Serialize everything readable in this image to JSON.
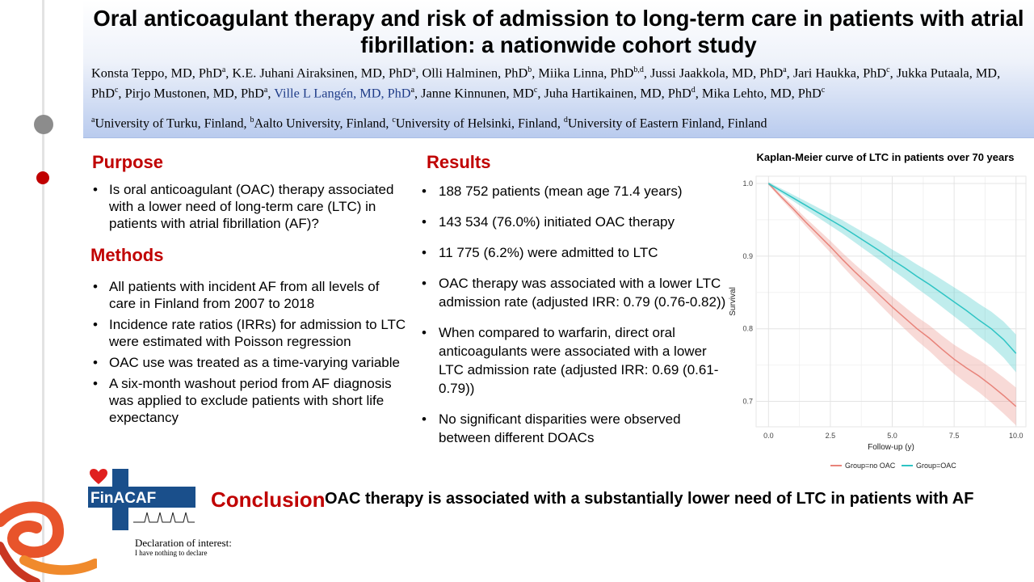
{
  "header": {
    "title": "Oral anticoagulant therapy and risk of admission to long-term care in patients with atrial fibrillation: a nationwide cohort study",
    "authors": [
      {
        "name": "Konsta Teppo, MD, PhD",
        "sup": "a",
        "sep": ", ",
        "blue": false
      },
      {
        "name": "K.E. Juhani Airaksinen, MD, PhD",
        "sup": "a",
        "sep": ", ",
        "blue": false
      },
      {
        "name": "Olli Halminen, PhD",
        "sup": "b",
        "sep": ", ",
        "blue": false
      },
      {
        "name": "Miika Linna, PhD",
        "sup": "b,d",
        "sep": ", ",
        "blue": false
      },
      {
        "name": "Jussi Jaakkola, MD, PhD",
        "sup": "a",
        "sep": ", ",
        "blue": false
      },
      {
        "name": "Jari Haukka, PhD",
        "sup": "c",
        "sep": ", ",
        "blue": false
      },
      {
        "name": "Jukka Putaala, MD, PhD",
        "sup": "c",
        "sep": ", ",
        "blue": false
      },
      {
        "name": "Pirjo Mustonen, MD, PhD",
        "sup": "a",
        "sep": ", ",
        "blue": false
      },
      {
        "name": "Ville L Langén, MD, PhD",
        "sup": "a",
        "sep": ", ",
        "blue": true
      },
      {
        "name": "Janne Kinnunen, MD",
        "sup": "c",
        "sep": ", ",
        "blue": false
      },
      {
        "name": "Juha Hartikainen, MD, PhD",
        "sup": "d",
        "sep": ", ",
        "blue": false
      },
      {
        "name": "Mika Lehto, MD, PhD",
        "sup": "c",
        "sep": "",
        "blue": false
      }
    ],
    "affiliations": [
      {
        "sup": "a",
        "text": "University of Turku, Finland, "
      },
      {
        "sup": "b",
        "text": "Aalto University, Finland, "
      },
      {
        "sup": "c",
        "text": "University of Helsinki, Finland, "
      },
      {
        "sup": "d",
        "text": "University of Eastern Finland, Finland"
      }
    ]
  },
  "purpose": {
    "heading": "Purpose",
    "items": [
      "Is oral anticoagulant (OAC) therapy associated with a lower need of long-term care (LTC) in patients with atrial fibrillation (AF)?"
    ]
  },
  "methods": {
    "heading": "Methods",
    "items": [
      "All patients with incident AF from all levels of care in Finland from 2007 to 2018",
      "Incidence rate ratios (IRRs) for admission to LTC were estimated with Poisson regression",
      "OAC use was treated as a time-varying variable",
      "A six-month washout period from AF diagnosis was applied to exclude patients with short life expectancy"
    ]
  },
  "results": {
    "heading": "Results",
    "items": [
      "188 752 patients (mean age 71.4 years)",
      "143 534 (76.0%) initiated OAC therapy",
      "11 775 (6.2%) were admitted to LTC",
      "OAC therapy was associated with a lower LTC admission rate (adjusted IRR: 0.79 (0.76-0.82))",
      "When compared to warfarin, direct oral anticoagulants were associated with a lower LTC admission rate (adjusted IRR: 0.69 (0.61-0.79))",
      "No significant disparities were observed between different DOACs"
    ]
  },
  "conclusion": {
    "heading": "Conclusion",
    "text": "OAC therapy is associated with a substantially lower need of LTC in patients with AF"
  },
  "logo": {
    "text": "FinACAF"
  },
  "declaration": {
    "title": "Declaration of interest:",
    "text": "I have nothing to declare"
  },
  "colors": {
    "accent_red": "#c00000",
    "header_blue": "#b9cbee",
    "no_oac": "#e8837a",
    "oac": "#2ec4c4"
  },
  "chart_data": {
    "type": "line",
    "title": "Kaplan-Meier curve of LTC in patients over 70 years",
    "xlabel": "Follow-up (y)",
    "ylabel": "Survival",
    "xlim": [
      -0.5,
      10.4
    ],
    "ylim": [
      0.665,
      1.01
    ],
    "x_ticks": [
      0.0,
      2.5,
      5.0,
      7.5,
      10.0
    ],
    "x_tick_labels": [
      "0.0",
      "2.5",
      "5.0",
      "7.5",
      "10.0"
    ],
    "y_ticks": [
      0.7,
      0.8,
      0.9,
      1.0
    ],
    "y_tick_labels": [
      "0.7",
      "0.8",
      "0.9",
      "1.0"
    ],
    "grid": true,
    "legend_position": "bottom",
    "series": [
      {
        "name": "Group=no OAC",
        "color": "#e8837a",
        "x": [
          0,
          0.5,
          1,
          1.5,
          2,
          2.5,
          3,
          3.5,
          4,
          4.5,
          5,
          5.5,
          6,
          6.5,
          7,
          7.5,
          8,
          8.5,
          9,
          9.5,
          10
        ],
        "y": [
          1.0,
          0.982,
          0.965,
          0.947,
          0.93,
          0.913,
          0.895,
          0.878,
          0.862,
          0.846,
          0.83,
          0.815,
          0.8,
          0.787,
          0.772,
          0.758,
          0.746,
          0.735,
          0.722,
          0.708,
          0.693
        ]
      },
      {
        "name": "Group=OAC",
        "color": "#2ec4c4",
        "x": [
          0,
          0.5,
          1,
          1.5,
          2,
          2.5,
          3,
          3.5,
          4,
          4.5,
          5,
          5.5,
          6,
          6.5,
          7,
          7.5,
          8,
          8.5,
          9,
          9.5,
          10
        ],
        "y": [
          1.0,
          0.99,
          0.98,
          0.97,
          0.96,
          0.95,
          0.94,
          0.929,
          0.918,
          0.907,
          0.895,
          0.884,
          0.872,
          0.861,
          0.849,
          0.837,
          0.825,
          0.812,
          0.8,
          0.785,
          0.766
        ]
      }
    ]
  }
}
